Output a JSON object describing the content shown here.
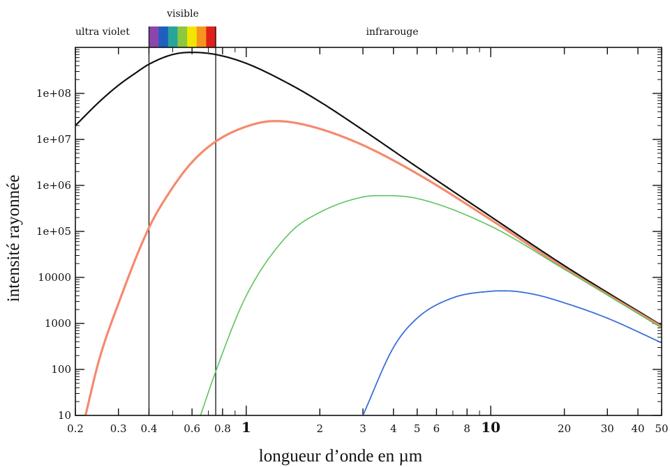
{
  "chart_data": {
    "type": "line",
    "xlabel": "longueur d’onde en µm",
    "ylabel": "intensité rayonnée",
    "x_scale": "log",
    "y_scale": "log",
    "xlim": [
      0.2,
      50
    ],
    "ylim": [
      10,
      1000000000
    ],
    "x_ticks": [
      {
        "value": 0.2,
        "label": "0.2",
        "major": false
      },
      {
        "value": 0.3,
        "label": "0.3",
        "major": false
      },
      {
        "value": 0.4,
        "label": "0.4",
        "major": false
      },
      {
        "value": 0.6,
        "label": "0.6",
        "major": false
      },
      {
        "value": 0.8,
        "label": "0.8",
        "major": false
      },
      {
        "value": 1,
        "label": "1",
        "major": true
      },
      {
        "value": 2,
        "label": "2",
        "major": false
      },
      {
        "value": 3,
        "label": "3",
        "major": false
      },
      {
        "value": 4,
        "label": "4",
        "major": false
      },
      {
        "value": 5,
        "label": "5",
        "major": false
      },
      {
        "value": 6,
        "label": "6",
        "major": false
      },
      {
        "value": 8,
        "label": "8",
        "major": false
      },
      {
        "value": 10,
        "label": "10",
        "major": true
      },
      {
        "value": 20,
        "label": "20",
        "major": false
      },
      {
        "value": 30,
        "label": "30",
        "major": false
      },
      {
        "value": 40,
        "label": "40",
        "major": false
      },
      {
        "value": 50,
        "label": "50",
        "major": false
      }
    ],
    "y_ticks": [
      {
        "value": 10,
        "label": "10"
      },
      {
        "value": 100,
        "label": "100"
      },
      {
        "value": 1000,
        "label": "1000"
      },
      {
        "value": 10000,
        "label": "10000"
      },
      {
        "value": 100000,
        "label": "1e+05"
      },
      {
        "value": 1000000,
        "label": "1e+06"
      },
      {
        "value": 10000000,
        "label": "1e+07"
      },
      {
        "value": 100000000,
        "label": "1e+08"
      }
    ],
    "vertical_lines": [
      0.4,
      0.75
    ],
    "bands": [
      {
        "label": "ultra violet"
      },
      {
        "label": "visible"
      },
      {
        "label": "infrarouge"
      }
    ],
    "visible_spectrum_colors": [
      "#8e44ad",
      "#1f5fbf",
      "#27a59a",
      "#8dc63f",
      "#f2e600",
      "#f7941d",
      "#e0201b"
    ],
    "series": [
      {
        "color": "#111111",
        "x": [
          0.2,
          0.25,
          0.3,
          0.35,
          0.4,
          0.5,
          0.6,
          0.75,
          1,
          1.5,
          2,
          3,
          5,
          10,
          20,
          50
        ],
        "y": [
          20000000,
          65000000,
          150000000,
          270000000,
          430000000,
          700000000,
          780000000,
          700000000,
          450000000,
          160000000,
          66000000,
          16000000,
          2500000,
          210000,
          18000,
          900
        ]
      },
      {
        "color": "#f58a6e",
        "x": [
          0.22,
          0.25,
          0.3,
          0.4,
          0.5,
          0.6,
          0.75,
          1,
          1.3,
          1.5,
          2,
          3,
          5,
          10,
          20,
          50
        ],
        "y": [
          10,
          160,
          2700,
          120000,
          900000,
          3200000,
          9000000,
          19000000,
          25000000,
          24000000,
          17000000,
          7500000,
          1800000,
          180000,
          16000,
          850
        ]
      },
      {
        "color": "#5cc45c",
        "x": [
          0.65,
          0.75,
          1,
          1.5,
          2,
          3,
          3.6,
          5,
          10,
          20,
          50
        ],
        "y": [
          10,
          90,
          4000,
          90000,
          260000,
          560000,
          600000,
          520000,
          130000,
          15000,
          800
        ]
      },
      {
        "color": "#3a6fd8",
        "x": [
          3,
          4,
          5,
          7,
          10,
          11.5,
          15,
          20,
          30,
          50
        ],
        "y": [
          10,
          300,
          1300,
          3600,
          5000,
          5100,
          4300,
          2800,
          1300,
          380
        ]
      }
    ]
  }
}
